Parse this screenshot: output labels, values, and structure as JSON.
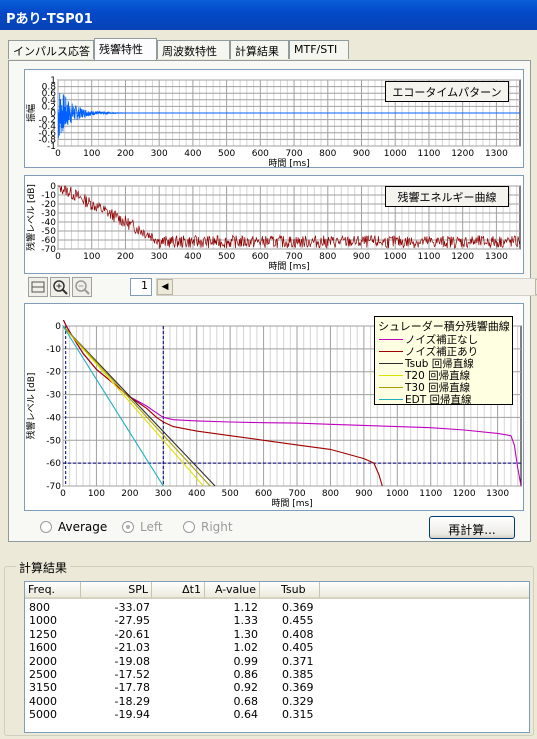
{
  "window": {
    "title": "Pあり-TSP01"
  },
  "tabs": [
    {
      "label": "インパルス応答"
    },
    {
      "label": "残響特性"
    },
    {
      "label": "周波数特性"
    },
    {
      "label": "計算結果"
    },
    {
      "label": "MTF/STI"
    }
  ],
  "top_plot": {
    "button_label": "エコータイムパターン",
    "ylabel": "振幅",
    "xlabel": "時間 [ms]",
    "y_ticks": [
      "1",
      "0.8",
      "0.6",
      "0.4",
      "0.2",
      "0",
      "-0.2",
      "-0.4",
      "-0.6",
      "-0.8",
      "-1"
    ],
    "x_ticks": [
      "0",
      "100",
      "200",
      "300",
      "400",
      "500",
      "600",
      "700",
      "800",
      "900",
      "1000",
      "1100",
      "1200",
      "1300"
    ]
  },
  "mid_plot": {
    "button_label": "残響エネルギー曲線",
    "ylabel": "残響レベル [dB]",
    "xlabel": "時間 [ms]",
    "y_ticks": [
      "0",
      "-10",
      "-20",
      "-30",
      "-40",
      "-50",
      "-60",
      "-70"
    ],
    "x_ticks": [
      "0",
      "100",
      "200",
      "300",
      "400",
      "500",
      "600",
      "700",
      "800",
      "900",
      "1000",
      "1100",
      "1200",
      "1300"
    ]
  },
  "toolbar": {
    "page_value": "1"
  },
  "chart_data": {
    "type": "line",
    "ylabel": "残響レベル [dB]",
    "xlabel": "時間 [ms]",
    "xlim": [
      0,
      1370
    ],
    "ylim": [
      -70,
      0
    ],
    "y_ticks": [
      "0",
      "-10",
      "-20",
      "-30",
      "-40",
      "-50",
      "-60",
      "-70"
    ],
    "x_ticks": [
      "0",
      "100",
      "200",
      "300",
      "400",
      "500",
      "600",
      "700",
      "800",
      "900",
      "1000",
      "1100",
      "1200",
      "1300"
    ],
    "legend_title": "シュレーダー積分残響曲線",
    "legend_position": "top-right",
    "series": [
      {
        "name": "ノイズ補正なし",
        "color": "#c000c0",
        "x": [
          0,
          10,
          30,
          60,
          100,
          150,
          200,
          250,
          280,
          300,
          330,
          400,
          500,
          600,
          700,
          800,
          900,
          1000,
          1100,
          1200,
          1300,
          1340,
          1350,
          1360,
          1370
        ],
        "y": [
          3,
          0,
          -5,
          -12,
          -19,
          -25,
          -31,
          -35,
          -38,
          -40,
          -41,
          -41.5,
          -42,
          -42.3,
          -42.5,
          -43,
          -43.5,
          -44,
          -44.5,
          -45.5,
          -47,
          -48,
          -52,
          -62,
          -70
        ]
      },
      {
        "name": "ノイズ補正あり",
        "color": "#a00000",
        "x": [
          0,
          10,
          30,
          60,
          100,
          150,
          200,
          250,
          280,
          300,
          330,
          400,
          500,
          600,
          700,
          800,
          850,
          900,
          930,
          945,
          955
        ],
        "y": [
          3,
          0,
          -5,
          -12,
          -19,
          -25,
          -31,
          -36,
          -40,
          -42,
          -44,
          -46,
          -48,
          -50,
          -52,
          -54,
          -56,
          -58,
          -60,
          -65,
          -70
        ]
      },
      {
        "name": "Tsub 回帰直線",
        "color": "#303030",
        "x": [
          0,
          455
        ],
        "y": [
          0,
          -70
        ]
      },
      {
        "name": "T20 回帰直線",
        "color": "#e0e000",
        "x": [
          0,
          420
        ],
        "y": [
          0,
          -70
        ]
      },
      {
        "name": "T30 回帰直線",
        "color": "#a8a000",
        "x": [
          0,
          440
        ],
        "y": [
          0,
          -70
        ]
      },
      {
        "name": "EDT 回帰直線",
        "color": "#20b0c0",
        "x": [
          0,
          300
        ],
        "y": [
          0,
          -70
        ]
      }
    ],
    "vlines_ms": [
      8,
      300
    ],
    "hline_db": -60
  },
  "options": {
    "average_label": "Average",
    "left_label": "Left",
    "right_label": "Right",
    "recalc_label": "再計算..."
  },
  "results": {
    "group_label": "計算結果",
    "headers": [
      "Freq.",
      "SPL",
      "Δt1",
      "A-value",
      "Tsub"
    ],
    "rows": [
      [
        "800",
        "-33.07",
        "",
        "1.12",
        "0.369"
      ],
      [
        "1000",
        "-27.95",
        "",
        "1.33",
        "0.455"
      ],
      [
        "1250",
        "-20.61",
        "",
        "1.30",
        "0.408"
      ],
      [
        "1600",
        "-21.03",
        "",
        "1.02",
        "0.405"
      ],
      [
        "2000",
        "-19.08",
        "",
        "0.99",
        "0.371"
      ],
      [
        "2500",
        "-17.52",
        "",
        "0.86",
        "0.385"
      ],
      [
        "3150",
        "-17.78",
        "",
        "0.92",
        "0.369"
      ],
      [
        "4000",
        "-18.29",
        "",
        "0.68",
        "0.329"
      ],
      [
        "5000",
        "-19.94",
        "",
        "0.64",
        "0.315"
      ]
    ]
  }
}
